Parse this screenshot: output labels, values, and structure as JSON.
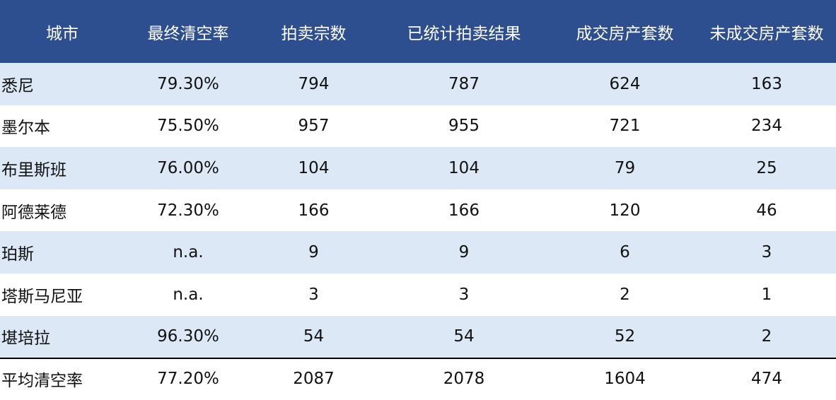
{
  "colors": {
    "header_bg": "#2e4f8f",
    "header_text": "#ffffff",
    "stripe_row": "#dce8f6",
    "plain_row": "#ffffff",
    "avg_border": "#000000"
  },
  "headers": [
    "城市",
    "最终清空率",
    "拍卖宗数",
    "已统计拍卖结果",
    "成交房产套数",
    "未成交房产套数"
  ],
  "rows": [
    [
      "悉尼",
      "79.30%",
      "794",
      "787",
      "624",
      "163"
    ],
    [
      "墨尔本",
      "75.50%",
      "957",
      "955",
      "721",
      "234"
    ],
    [
      "布里斯班",
      "76.00%",
      "104",
      "104",
      "79",
      "25"
    ],
    [
      "阿德莱德",
      "72.30%",
      "166",
      "166",
      "120",
      "46"
    ],
    [
      "珀斯",
      "n.a.",
      "9",
      "9",
      "6",
      "3"
    ],
    [
      "塔斯马尼亚",
      "n.a.",
      "3",
      "3",
      "2",
      "1"
    ],
    [
      "堪培拉",
      "96.30%",
      "54",
      "54",
      "52",
      "2"
    ]
  ],
  "average": [
    "平均清空率",
    "77.20%",
    "2087",
    "2078",
    "1604",
    "474"
  ]
}
